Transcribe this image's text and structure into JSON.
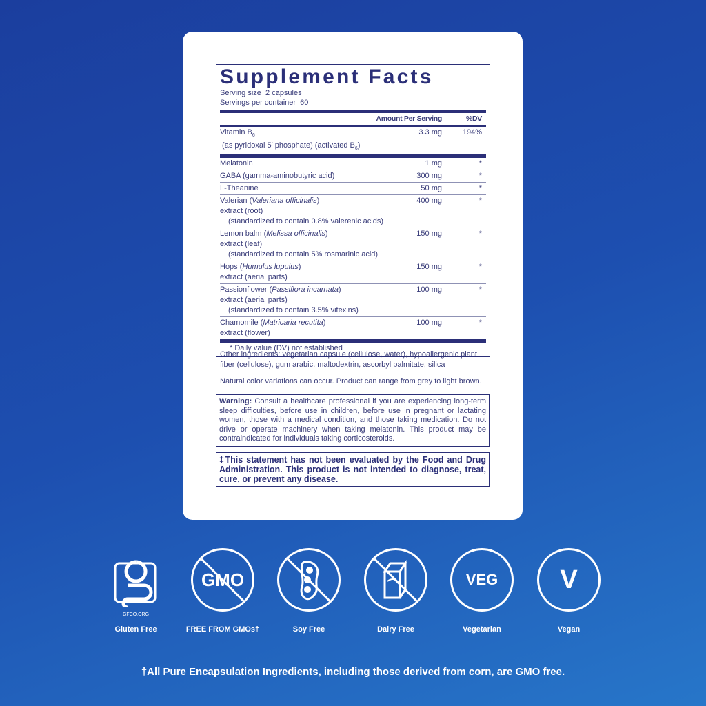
{
  "facts": {
    "title": "Supplement Facts",
    "serving_size": "Serving size  2 capsules",
    "servings_per_container": "Servings per container  60",
    "col_amount": "Amount Per Serving",
    "col_dv": "%DV",
    "vitamin": {
      "name": "Vitamin B",
      "sub": "6",
      "rest": " (as pyridoxal 5′ phosphate) (activated B",
      "sub2": "6",
      "close": ")",
      "amount": "3.3 mg",
      "dv": "194%"
    },
    "rows": [
      {
        "lines": [
          [
            "Melatonin"
          ]
        ],
        "amount": "1 mg",
        "dv": "*"
      },
      {
        "lines": [
          [
            "GABA (gamma-aminobutyric acid)"
          ]
        ],
        "amount": "300 mg",
        "dv": "*"
      },
      {
        "lines": [
          [
            "L-Theanine"
          ]
        ],
        "amount": "50 mg",
        "dv": "*"
      },
      {
        "name": "Valerian (",
        "latin": "Valeriana officinalis",
        "close": ")",
        "extra": [
          "extract (root)"
        ],
        "indent": "(standardized to contain 0.8% valerenic acids)",
        "amount": "400 mg",
        "dv": "*"
      },
      {
        "name": "Lemon balm (",
        "latin": "Melissa officinalis",
        "close": ")",
        "extra": [
          "extract (leaf)"
        ],
        "indent": "(standardized to contain 5% rosmarinic acid)",
        "amount": "150 mg",
        "dv": "*"
      },
      {
        "name": "Hops (",
        "latin": "Humulus lupulus",
        "close": ")",
        "extra": [
          "extract (aerial parts)"
        ],
        "amount": "150 mg",
        "dv": "*"
      },
      {
        "name": "Passionflower (",
        "latin": "Passiflora incarnata",
        "close": ")",
        "extra": [
          "extract (aerial parts)"
        ],
        "indent": "(standardized to contain 3.5% vitexins)",
        "amount": "100 mg",
        "dv": "*"
      },
      {
        "name": "Chamomile (",
        "latin": "Matricaria recutita",
        "close": ")",
        "extra": [
          "extract (flower)"
        ],
        "amount": "100 mg",
        "dv": "*"
      }
    ],
    "footnote": "* Daily value (DV) not established"
  },
  "other_ingredients": "Other ingredients: vegetarian capsule (cellulose, water), hypoallergenic plant fiber (cellulose), gum arabic, maltodextrin, ascorbyl palmitate, silica",
  "color_note": "Natural color variations can occur. Product can range from grey to light brown.",
  "warning": {
    "label": "Warning:",
    "text": " Consult a healthcare professional if you are experiencing long-term sleep difficulties, before use in children, before use in pregnant or lactating women, those with a medical condition, and those taking medication. Do not drive or operate machinery when taking melatonin. This product may be contraindicated for individuals taking corticosteroids."
  },
  "fda": "‡This statement has not been evaluated by the Food and Drug Administration. This product is not intended to diagnose, treat, cure, or prevent any disease.",
  "badges": [
    {
      "icon": "gluten-free-icon",
      "label": "Gluten Free",
      "mark": "GFCO.ORG"
    },
    {
      "icon": "gmo-free-icon",
      "label": "FREE FROM GMOs†",
      "mark": "GMO"
    },
    {
      "icon": "soy-free-icon",
      "label": "Soy Free"
    },
    {
      "icon": "dairy-free-icon",
      "label": "Dairy Free"
    },
    {
      "icon": "vegetarian-icon",
      "label": "Vegetarian",
      "mark": "VEG"
    },
    {
      "icon": "vegan-icon",
      "label": "Vegan",
      "mark": "V"
    }
  ],
  "footer": "†All Pure Encapsulation Ingredients, including those derived from corn, are GMO free.",
  "colors": {
    "navy": "#2b2f78",
    "bg_start": "#1b3e9e",
    "bg_end": "#2776c9"
  }
}
